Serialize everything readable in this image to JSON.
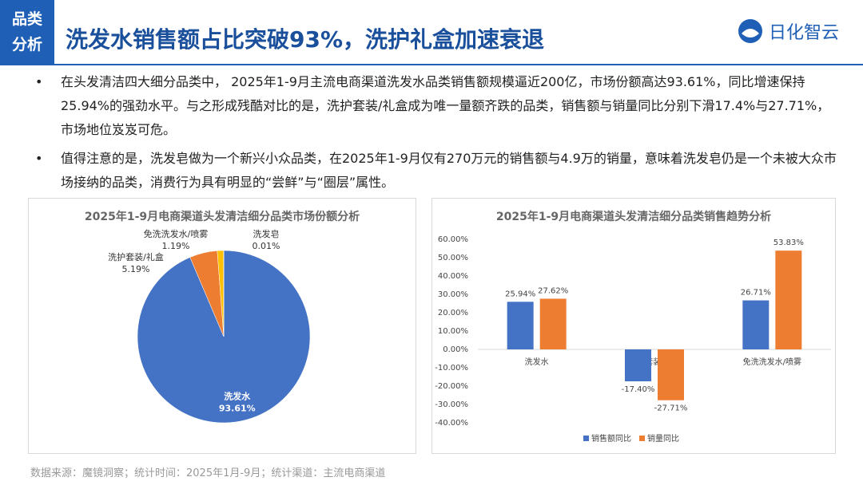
{
  "header": {
    "tag": [
      "品类",
      "分析"
    ],
    "title": "洗发水销售额占比突破93%，洗护礼盒加速衰退",
    "logo": "日化智云"
  },
  "bullets": [
    "在头发清洁四大细分品类中， 2025年1-9月主流电商渠道洗发水品类销售额规模逼近200亿，市场份额高达93.61%，同比增速保持25.94%的强劲水平。与之形成残酷对比的是，洗护套装/礼盒成为唯一量额齐跌的品类，销售额与销量同比分别下滑17.4%与27.71%，市场地位岌岌可危。",
    "值得注意的是，洗发皂做为一个新兴小众品类，在2025年1-9月仅有270万元的销售额与4.9万的销量，意味着洗发皂仍是一个未被大众市场接纳的品类，消费行为具有明显的“尝鲜”与“圈层”属性。"
  ],
  "chart_data": [
    {
      "type": "pie",
      "title": "2025年1-9月电商渠道头发清洁细分品类市场份额分析",
      "categories": [
        "洗发水",
        "洗护套装/礼盒",
        "免洗洗发水/喷雾",
        "洗发皂"
      ],
      "values": [
        93.61,
        5.19,
        1.19,
        0.01
      ],
      "value_labels": [
        "93.61%",
        "5.19%",
        "1.19%",
        "0.01%"
      ],
      "colors": [
        "#4472c4",
        "#ed7d31",
        "#ffc000",
        "#a5a5a5"
      ]
    },
    {
      "type": "bar",
      "title": "2025年1-9月电商渠道头发清洁细分品类销售趋势分析",
      "categories": [
        "洗发水",
        "洗护套装/礼盒",
        "免洗洗发水/喷雾"
      ],
      "series": [
        {
          "name": "销售额同比",
          "color": "#4472c4",
          "values": [
            25.94,
            -17.4,
            26.71
          ],
          "value_labels": [
            "25.94%",
            "-17.40%",
            "26.71%"
          ]
        },
        {
          "name": "销量同比",
          "color": "#ed7d31",
          "values": [
            27.62,
            -27.71,
            53.83
          ],
          "value_labels": [
            "27.62%",
            "-27.71%",
            "53.83%"
          ]
        }
      ],
      "ylim": [
        -40,
        60
      ],
      "yticks": [
        {
          "value": 60,
          "label": "60.00%"
        },
        {
          "value": 50,
          "label": "50.00%"
        },
        {
          "value": 40,
          "label": "40.00%"
        },
        {
          "value": 30,
          "label": "30.00%"
        },
        {
          "value": 20,
          "label": "20.00%"
        },
        {
          "value": 10,
          "label": "10.00%"
        },
        {
          "value": 0,
          "label": "0.00%"
        },
        {
          "value": -10,
          "label": "-10.00%"
        },
        {
          "value": -20,
          "label": "-20.00%"
        },
        {
          "value": -30,
          "label": "-30.00%"
        },
        {
          "value": -40,
          "label": "-40.00%"
        }
      ],
      "legend": "bottom"
    }
  ],
  "footer": "数据来源：魔镜洞察；统计时间：2025年1月-9月；统计渠道：主流电商渠道"
}
